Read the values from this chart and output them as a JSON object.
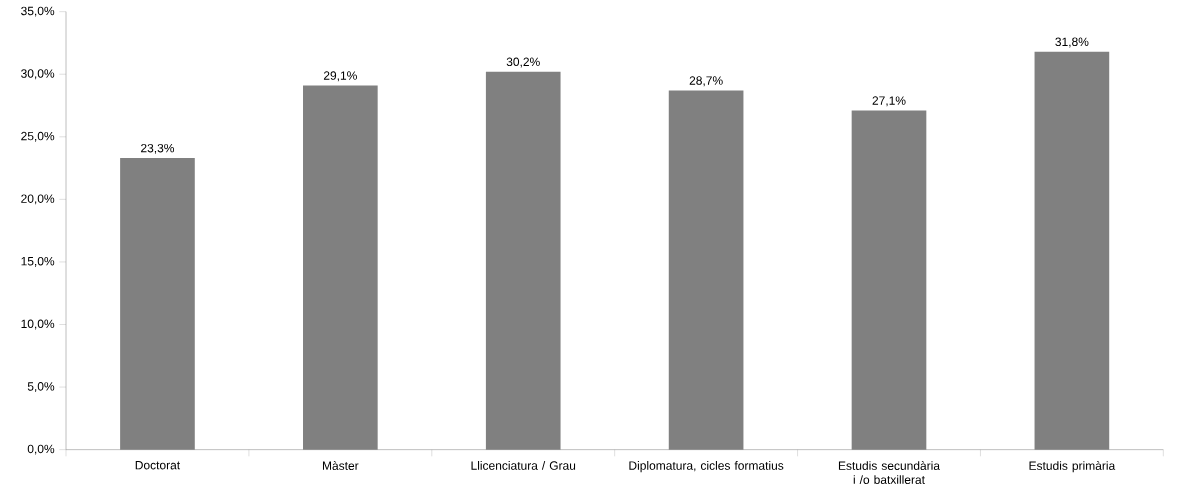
{
  "chart_data": {
    "type": "bar",
    "categories": [
      "Doctorat",
      "Màster",
      "Llicenciatura / Grau",
      "Diplomatura, cicles formatius",
      "Estudis secundària i /o batxillerat",
      "Estudis primària"
    ],
    "values": [
      23.3,
      29.1,
      30.2,
      28.7,
      27.1,
      31.8
    ],
    "value_labels": [
      "23,3%",
      "29,1%",
      "30,2%",
      "28,7%",
      "27,1%",
      "31,8%"
    ],
    "color": "#808080",
    "ylim": [
      0,
      35
    ],
    "yticks": [
      {
        "value": 0,
        "label": "0,0%"
      },
      {
        "value": 5,
        "label": "5,0%"
      },
      {
        "value": 10,
        "label": "10,0%"
      },
      {
        "value": 15,
        "label": "15,0%"
      },
      {
        "value": 20,
        "label": "20,0%"
      },
      {
        "value": 25,
        "label": "25,0%"
      },
      {
        "value": 30,
        "label": "30,0%"
      },
      {
        "value": 35,
        "label": "35,0%"
      }
    ],
    "grid": false
  }
}
